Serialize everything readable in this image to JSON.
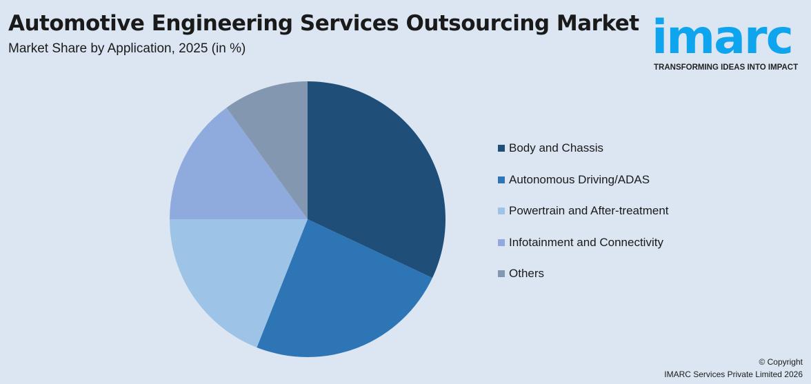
{
  "header": {
    "title": "Automotive Engineering Services Outsourcing Market",
    "subtitle": "Market Share by Application, 2025 (in %)"
  },
  "logo": {
    "word": "imarc",
    "tagline": "TRANSFORMING IDEAS INTO IMPACT"
  },
  "chart_data": {
    "type": "pie",
    "title": "Automotive Engineering Services Outsourcing Market",
    "subtitle": "Market Share by Application, 2025 (in %)",
    "categories": [
      "Body and Chassis",
      "Autonomous Driving/ADAS",
      "Powertrain and After-treatment",
      "Infotainment and Connectivity",
      "Others"
    ],
    "values": [
      32,
      24,
      19,
      15,
      10
    ],
    "colors": [
      "#1f4e79",
      "#2e75b6",
      "#9dc3e6",
      "#8faadc",
      "#8497b0"
    ],
    "legend_placement": "right"
  },
  "footer": {
    "copyright": "© Copyright",
    "company": "IMARC Services Private Limited 2026"
  }
}
